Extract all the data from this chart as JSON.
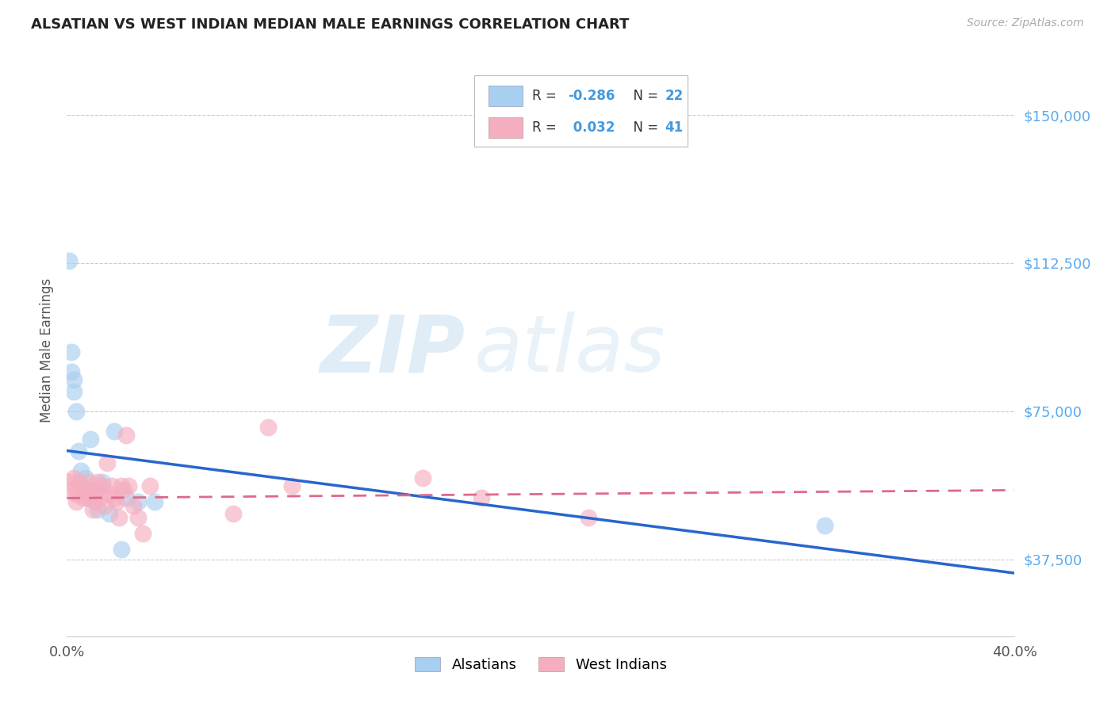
{
  "title": "ALSATIAN VS WEST INDIAN MEDIAN MALE EARNINGS CORRELATION CHART",
  "source": "Source: ZipAtlas.com",
  "ylabel": "Median Male Earnings",
  "xlim": [
    0.0,
    0.4
  ],
  "ylim": [
    18000,
    163000
  ],
  "yticks": [
    37500,
    75000,
    112500,
    150000
  ],
  "ytick_labels": [
    "$37,500",
    "$75,000",
    "$112,500",
    "$150,000"
  ],
  "xticks": [
    0.0,
    0.4
  ],
  "xtick_labels": [
    "0.0%",
    "40.0%"
  ],
  "alsatian_R": -0.286,
  "alsatian_N": 22,
  "westindian_R": 0.032,
  "westindian_N": 41,
  "alsatian_color": "#a8cff0",
  "westindian_color": "#f5aec0",
  "alsatian_line_color": "#2866cc",
  "westindian_line_color": "#e06888",
  "watermark_zip": "ZIP",
  "watermark_atlas": "atlas",
  "alsatian_x": [
    0.001,
    0.002,
    0.002,
    0.003,
    0.003,
    0.004,
    0.005,
    0.006,
    0.007,
    0.008,
    0.009,
    0.01,
    0.012,
    0.013,
    0.015,
    0.018,
    0.02,
    0.023,
    0.025,
    0.03,
    0.037,
    0.32
  ],
  "alsatian_y": [
    113000,
    90000,
    85000,
    83000,
    80000,
    75000,
    65000,
    60000,
    55000,
    58000,
    53000,
    68000,
    55000,
    50000,
    57000,
    49000,
    70000,
    40000,
    53000,
    52000,
    52000,
    46000
  ],
  "westindian_x": [
    0.001,
    0.002,
    0.003,
    0.004,
    0.004,
    0.005,
    0.005,
    0.006,
    0.007,
    0.007,
    0.008,
    0.009,
    0.009,
    0.01,
    0.011,
    0.012,
    0.012,
    0.013,
    0.014,
    0.015,
    0.016,
    0.017,
    0.018,
    0.019,
    0.02,
    0.021,
    0.022,
    0.023,
    0.024,
    0.025,
    0.026,
    0.028,
    0.03,
    0.032,
    0.035,
    0.07,
    0.085,
    0.095,
    0.15,
    0.175,
    0.22
  ],
  "westindian_y": [
    57000,
    55000,
    58000,
    54000,
    52000,
    57000,
    54000,
    56000,
    55000,
    53000,
    54000,
    57000,
    54000,
    53000,
    50000,
    55000,
    52000,
    57000,
    53000,
    56000,
    51000,
    62000,
    54000,
    56000,
    53000,
    52000,
    48000,
    56000,
    55000,
    69000,
    56000,
    51000,
    48000,
    44000,
    56000,
    49000,
    71000,
    56000,
    58000,
    53000,
    48000
  ],
  "alsatian_line_x": [
    0.0,
    0.4
  ],
  "alsatian_line_y": [
    65000,
    34000
  ],
  "westindian_line_x": [
    0.0,
    0.4
  ],
  "westindian_line_y": [
    53000,
    55000
  ]
}
